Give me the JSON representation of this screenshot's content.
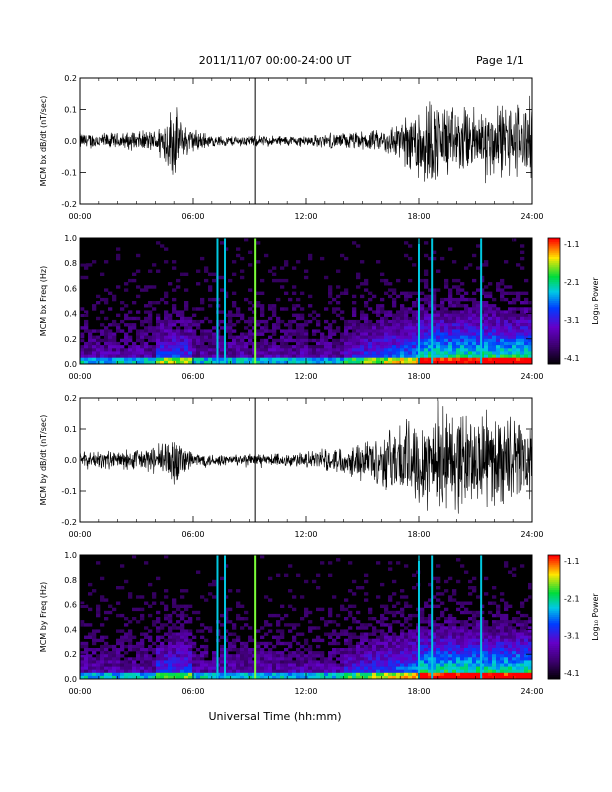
{
  "header": {
    "title": "2011/11/07  00:00-24:00 UT",
    "page": "Page 1/1"
  },
  "xlabel": "Universal Time (hh:mm)",
  "colorbar": {
    "label": "Log₁₀ Power",
    "ticks": [
      "-1.1",
      "-2.1",
      "-3.1",
      "-4.1"
    ]
  },
  "chart_data": [
    {
      "type": "line",
      "ylabel": "MCM bx dB/dt (nT/sec)",
      "xlim": [
        0,
        24
      ],
      "ylim": [
        -0.2,
        0.2
      ],
      "xticks": [
        "00:00",
        "06:00",
        "12:00",
        "18:00",
        "24:00"
      ],
      "yticks": [
        "0.2",
        "0.1",
        "0.0",
        "-0.1",
        "-0.2"
      ],
      "envelope": [
        {
          "t": 0,
          "amp": 0.03
        },
        {
          "t": 2,
          "amp": 0.03
        },
        {
          "t": 4,
          "amp": 0.04
        },
        {
          "t": 5,
          "amp": 0.14
        },
        {
          "t": 5.5,
          "amp": 0.06
        },
        {
          "t": 7,
          "amp": 0.02
        },
        {
          "t": 12,
          "amp": 0.02
        },
        {
          "t": 14,
          "amp": 0.03
        },
        {
          "t": 16,
          "amp": 0.04
        },
        {
          "t": 17.5,
          "amp": 0.1
        },
        {
          "t": 18,
          "amp": 0.18
        },
        {
          "t": 20,
          "amp": 0.12
        },
        {
          "t": 24,
          "amp": 0.15
        }
      ],
      "spikes": [
        9.3
      ]
    },
    {
      "type": "heatmap",
      "ylabel": "MCM bx Freq (Hz)",
      "xlim": [
        0,
        24
      ],
      "ylim": [
        0.0,
        1.0
      ],
      "xticks": [
        "00:00",
        "06:00",
        "12:00",
        "18:00",
        "24:00"
      ],
      "yticks": [
        "1.0",
        "0.8",
        "0.6",
        "0.4",
        "0.2",
        "0.0"
      ],
      "lines": [
        7.3,
        7.7,
        9.3,
        18.0,
        18.7,
        21.3
      ],
      "clim": [
        -4.1,
        -1.1
      ]
    },
    {
      "type": "line",
      "ylabel": "MCM by dB/dt (nT/sec)",
      "xlim": [
        0,
        24
      ],
      "ylim": [
        -0.2,
        0.2
      ],
      "xticks": [
        "00:00",
        "06:00",
        "12:00",
        "18:00",
        "24:00"
      ],
      "yticks": [
        "0.2",
        "0.1",
        "0.0",
        "-0.1",
        "-0.2"
      ],
      "envelope": [
        {
          "t": 0,
          "amp": 0.03
        },
        {
          "t": 2,
          "amp": 0.035
        },
        {
          "t": 4,
          "amp": 0.05
        },
        {
          "t": 5,
          "amp": 0.1
        },
        {
          "t": 6,
          "amp": 0.03
        },
        {
          "t": 8,
          "amp": 0.02
        },
        {
          "t": 12,
          "amp": 0.03
        },
        {
          "t": 14,
          "amp": 0.05
        },
        {
          "t": 16,
          "amp": 0.1
        },
        {
          "t": 17.5,
          "amp": 0.16
        },
        {
          "t": 19,
          "amp": 0.2
        },
        {
          "t": 24,
          "amp": 0.15
        }
      ],
      "spikes": [
        9.3
      ]
    },
    {
      "type": "heatmap",
      "ylabel": "MCM by Freq (Hz)",
      "xlim": [
        0,
        24
      ],
      "ylim": [
        0.0,
        1.0
      ],
      "xticks": [
        "00:00",
        "06:00",
        "12:00",
        "18:00",
        "24:00"
      ],
      "yticks": [
        "1.0",
        "0.8",
        "0.6",
        "0.4",
        "0.2",
        "0.0"
      ],
      "lines": [
        7.3,
        7.7,
        9.3,
        18.0,
        18.7,
        21.3
      ],
      "clim": [
        -4.1,
        -1.1
      ]
    }
  ]
}
